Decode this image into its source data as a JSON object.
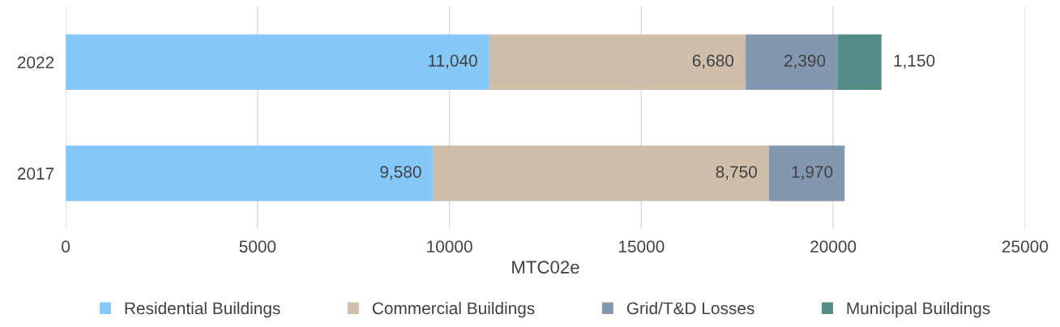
{
  "chart_data": {
    "type": "bar",
    "orientation": "horizontal",
    "stacked": true,
    "categories": [
      "2022",
      "2017"
    ],
    "series": [
      {
        "name": "Residential Buildings",
        "color": "#85c8fa",
        "values": [
          11040,
          9580
        ],
        "value_labels": [
          "11,040",
          "9,580"
        ]
      },
      {
        "name": "Commercial Buildings",
        "color": "#cfbfaa",
        "values": [
          6680,
          8750
        ],
        "value_labels": [
          "6,680",
          "8,750"
        ]
      },
      {
        "name": "Grid/T&D Losses",
        "color": "#8497b0",
        "values": [
          2390,
          1970
        ],
        "value_labels": [
          "2,390",
          "1,970"
        ]
      },
      {
        "name": "Municipal Buildings",
        "color": "#548c87",
        "values": [
          1150,
          null
        ],
        "value_labels": [
          "1,150",
          null
        ]
      }
    ],
    "xlabel": "MTC02e",
    "xlim": [
      0,
      25000
    ],
    "xticks": [
      0,
      5000,
      10000,
      15000,
      20000,
      25000
    ],
    "grid": "x",
    "legend": "bottom"
  }
}
